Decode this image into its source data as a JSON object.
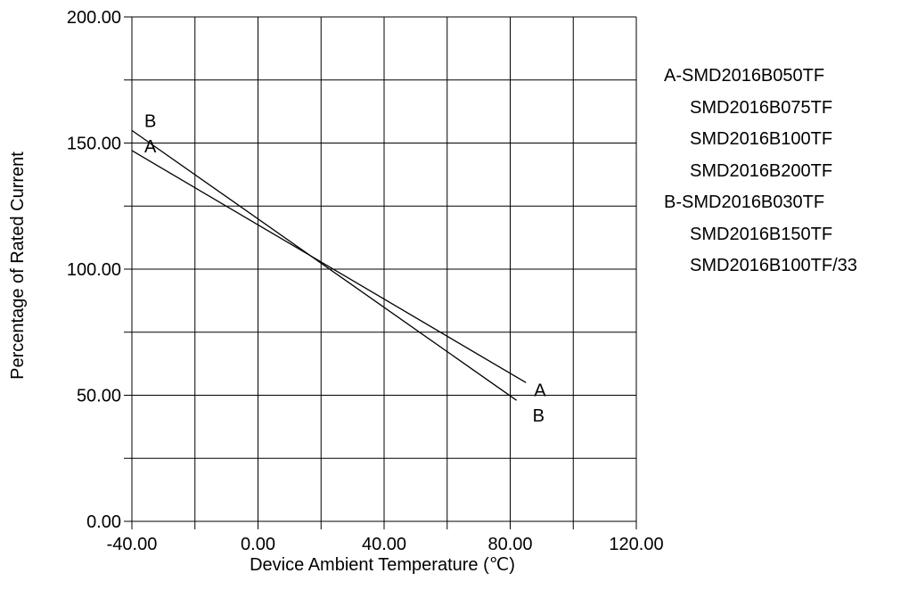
{
  "chart_data": {
    "type": "line",
    "title": "",
    "xlabel": "Device Ambient Temperature (℃)",
    "ylabel": "Percentage of Rated Current",
    "xlim": [
      -40,
      120
    ],
    "ylim": [
      0,
      200
    ],
    "x_ticks": [
      -40,
      -20,
      0,
      20,
      40,
      60,
      80,
      100,
      120
    ],
    "y_ticks": [
      0,
      25,
      50,
      75,
      100,
      125,
      150,
      175,
      200
    ],
    "x_tick_labels": [
      "-40.00",
      "0.00",
      "40.00",
      "80.00",
      "120.00"
    ],
    "y_tick_labels": [
      "0.00",
      "50.00",
      "100.00",
      "150.00",
      "200.00"
    ],
    "grid": true,
    "series": [
      {
        "name": "A",
        "x": [
          -40,
          85
        ],
        "y": [
          147,
          55
        ],
        "color": "#000000"
      },
      {
        "name": "B",
        "x": [
          -40,
          82
        ],
        "y": [
          155,
          48
        ],
        "color": "#000000"
      }
    ],
    "legend": [
      {
        "text": "A-SMD2016B050TF",
        "indent": false
      },
      {
        "text": "SMD2016B075TF",
        "indent": true
      },
      {
        "text": "SMD2016B100TF",
        "indent": true
      },
      {
        "text": "SMD2016B200TF",
        "indent": true
      },
      {
        "text": "B-SMD2016B030TF",
        "indent": false
      },
      {
        "text": "SMD2016B150TF",
        "indent": true
      },
      {
        "text": "SMD2016B100TF/33",
        "indent": true
      }
    ],
    "legend_position": "right"
  }
}
